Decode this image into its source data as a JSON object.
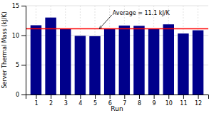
{
  "chart_data": {
    "type": "bar",
    "x": [
      1,
      2,
      3,
      4,
      5,
      6,
      7,
      8,
      9,
      10,
      11,
      12
    ],
    "values": [
      11.7,
      13.0,
      11.1,
      9.9,
      9.85,
      11.05,
      11.65,
      11.6,
      11.1,
      11.85,
      10.3,
      10.85
    ],
    "color": "#00008B",
    "xlabel": "Run",
    "ylabel": "Server Thermal Mass (kJ/K)",
    "xlim": [
      0.3,
      12.7
    ],
    "xticks": [
      1,
      2,
      3,
      4,
      5,
      6,
      7,
      8,
      9,
      10,
      11,
      12
    ],
    "ylim": [
      0,
      15
    ],
    "yticks": [
      0,
      5,
      10,
      15
    ],
    "grid": true,
    "reference_line": {
      "value": 11.1,
      "color": "red"
    },
    "annotations": [
      {
        "text": "Average = 11.1 kJ/K",
        "x": 6.2,
        "y": 13.8,
        "xy": [
          5.3,
          11.1
        ]
      }
    ]
  }
}
